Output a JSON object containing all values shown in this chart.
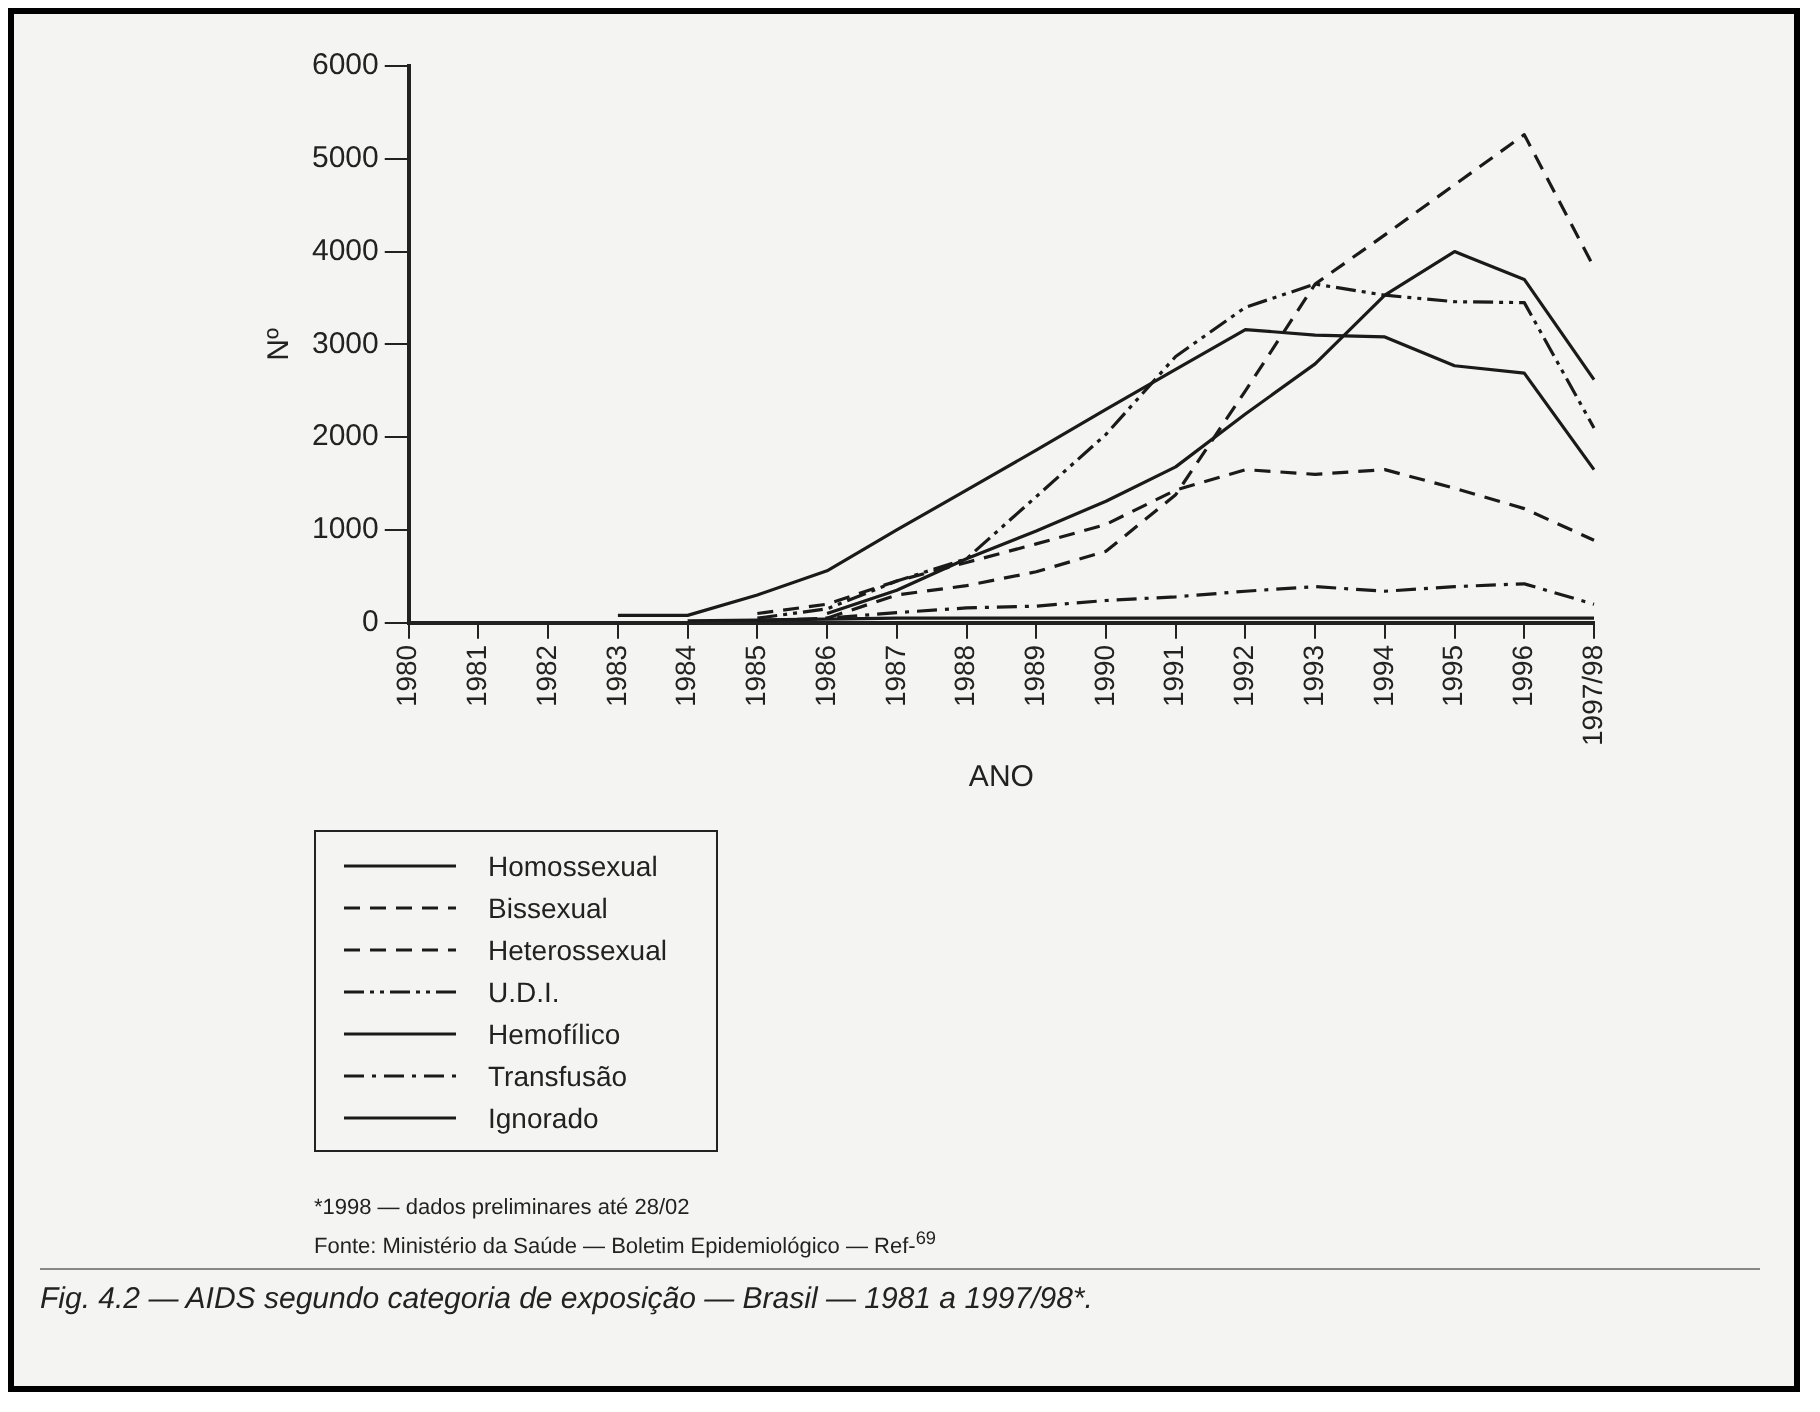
{
  "chart_data": {
    "type": "line",
    "title": "Fig. 4.2 — AIDS segundo categoria de exposição — Brasil — 1981 a 1997/98*.",
    "xlabel": "ANO",
    "ylabel": "Nº",
    "categories": [
      "1980",
      "1981",
      "1982",
      "1983",
      "1984",
      "1985",
      "1986",
      "1987",
      "1988",
      "1989",
      "1990",
      "1991",
      "1992",
      "1993",
      "1994",
      "1995",
      "1996",
      "1997/98"
    ],
    "series": [
      {
        "name": "Homossexual",
        "color": "#1a1a1a",
        "line_style": "solid",
        "values": [
          null,
          null,
          null,
          80,
          80,
          300,
          560,
          1000,
          1430,
          1860,
          2300,
          2730,
          3160,
          3100,
          3080,
          2770,
          2690,
          1650
        ]
      },
      {
        "name": "Bissexual",
        "color": "#1a1a1a",
        "line_style": "dashed",
        "values": [
          null,
          null,
          null,
          null,
          null,
          100,
          200,
          450,
          650,
          850,
          1060,
          1430,
          1650,
          1600,
          1650,
          1450,
          1230,
          890
        ]
      },
      {
        "name": "Heterossexual",
        "color": "#1a1a1a",
        "line_style": "dashed",
        "values": [
          null,
          null,
          null,
          null,
          null,
          null,
          50,
          300,
          400,
          550,
          770,
          1380,
          2500,
          3650,
          4180,
          4720,
          5260,
          3830
        ]
      },
      {
        "name": "U.D.I.",
        "color": "#1a1a1a",
        "line_style": "dashdotdot",
        "values": [
          null,
          null,
          null,
          null,
          null,
          50,
          150,
          450,
          690,
          1360,
          2030,
          2870,
          3400,
          3650,
          3530,
          3460,
          3450,
          2100
        ]
      },
      {
        "name": "Hemofílico",
        "color": "#1a1a1a",
        "line_style": "solid",
        "values": [
          null,
          null,
          null,
          null,
          20,
          30,
          40,
          50,
          50,
          50,
          50,
          50,
          50,
          50,
          50,
          50,
          50,
          50
        ]
      },
      {
        "name": "Transfusão",
        "color": "#1a1a1a",
        "line_style": "dashdot",
        "values": [
          null,
          null,
          null,
          null,
          null,
          20,
          50,
          110,
          160,
          180,
          240,
          280,
          340,
          390,
          340,
          390,
          420,
          200
        ]
      },
      {
        "name": "Ignorado",
        "color": "#1a1a1a",
        "line_style": "solid",
        "values": [
          null,
          null,
          null,
          null,
          null,
          null,
          100,
          350,
          690,
          990,
          1310,
          1680,
          2250,
          2790,
          3530,
          4000,
          3700,
          2620
        ]
      }
    ],
    "ylim": [
      0,
      6000
    ],
    "yticks": [
      0,
      1000,
      2000,
      3000,
      4000,
      5000,
      6000
    ],
    "grid": false,
    "legend": "bottom left",
    "marker": "none",
    "annotations": [
      "*1998 — dados preliminares até 28/02",
      "Fonte: Ministério da Saúde — Boletim Epidemiológico — Ref-$^{69}$"
    ]
  }
}
